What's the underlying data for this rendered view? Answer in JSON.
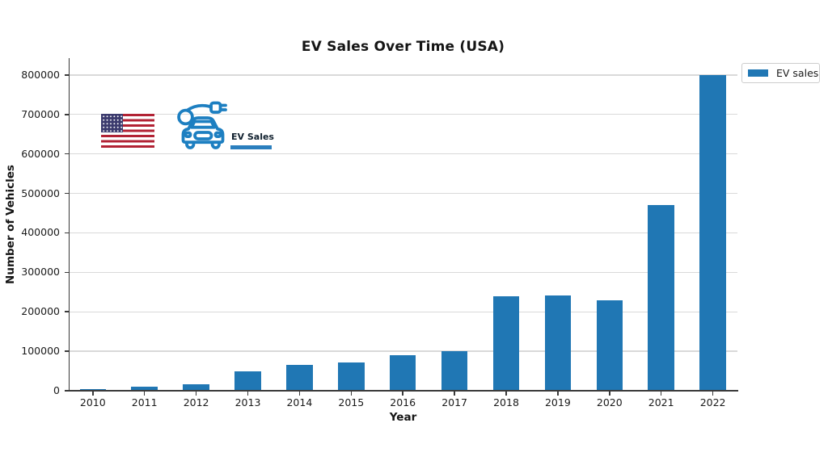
{
  "figure": {
    "title": "EV Sales Over Time (USA)",
    "xlabel": "Year",
    "ylabel": "Number of Vehicles"
  },
  "legend": {
    "position": "upper right",
    "items": [
      {
        "label": "EV sales",
        "color": "#2077b4"
      }
    ]
  },
  "inset": {
    "label": "EV Sales",
    "icons": [
      "us-flag-icon",
      "ev-car-charging-icon"
    ]
  },
  "colors": {
    "bar": "#2077b4",
    "grid": "#d9d9d9",
    "spine": "#3a3a3a",
    "text": "#1a1a1a",
    "underline_accent": "#2b7fbe",
    "flag_red": "#b22234",
    "flag_blue": "#3c3b6e",
    "car_icon_blue": "#1d7fc1",
    "legend_border": "#cccccc"
  },
  "chart_data": {
    "type": "bar",
    "title": "EV Sales Over Time (USA)",
    "xlabel": "Year",
    "ylabel": "Number of Vehicles",
    "categories": [
      "2010",
      "2011",
      "2012",
      "2013",
      "2014",
      "2015",
      "2016",
      "2017",
      "2018",
      "2019",
      "2020",
      "2021",
      "2022"
    ],
    "series": [
      {
        "name": "EV sales",
        "values": [
          4000,
          11000,
          16000,
          50000,
          65000,
          72000,
          90000,
          100000,
          240000,
          242000,
          230000,
          470000,
          800000
        ]
      }
    ],
    "yticks": [
      0,
      100000,
      200000,
      300000,
      400000,
      500000,
      600000,
      700000,
      800000
    ],
    "ylim": [
      0,
      836000
    ],
    "grid": "horizontal",
    "legend_position": "upper right",
    "bar_color": "#2077b4"
  }
}
